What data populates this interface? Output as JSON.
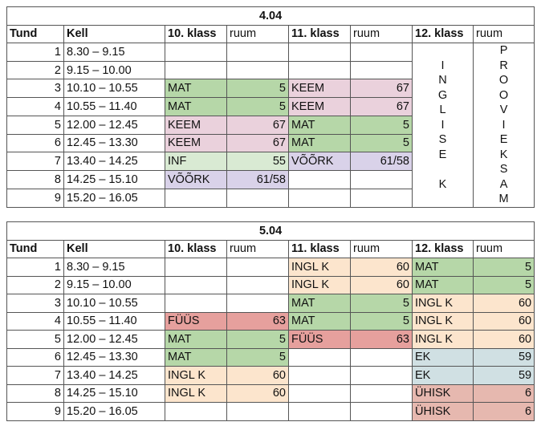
{
  "day1": {
    "title": "4.04",
    "headers": [
      "Tund",
      "Kell",
      "10. klass",
      "ruum",
      "11. klass",
      "ruum",
      "12. klass",
      "ruum"
    ],
    "rows": [
      {
        "n": "1",
        "time": "8.30 – 9.15",
        "s10": "",
        "r10": "",
        "s11": "",
        "r11": ""
      },
      {
        "n": "2",
        "time": "9.15 – 10.00",
        "s10": "",
        "r10": "",
        "s11": "",
        "r11": ""
      },
      {
        "n": "3",
        "time": "10.10 – 10.55",
        "s10": "MAT",
        "r10": "5",
        "s11": "KEEM",
        "r11": "67"
      },
      {
        "n": "4",
        "time": "10.55 – 11.40",
        "s10": "MAT",
        "r10": "5",
        "s11": "KEEM",
        "r11": "67"
      },
      {
        "n": "5",
        "time": "12.00 – 12.45",
        "s10": "KEEM",
        "r10": "67",
        "s11": "MAT",
        "r11": "5"
      },
      {
        "n": "6",
        "time": "12.45 – 13.30",
        "s10": "KEEM",
        "r10": "67",
        "s11": "MAT",
        "r11": "5"
      },
      {
        "n": "7",
        "time": "13.40 – 14.25",
        "s10": "INF",
        "r10": "55",
        "s11": "VÕÕRK",
        "r11": "61/58"
      },
      {
        "n": "8",
        "time": "14.25 – 15.10",
        "s10": "VÕÕRK",
        "r10": "61/58",
        "s11": "",
        "r11": ""
      },
      {
        "n": "9",
        "time": "15.20 – 16.05",
        "s10": "",
        "r10": "",
        "s11": "",
        "r11": ""
      }
    ],
    "vertical_subject": [
      "I",
      "N",
      "G",
      "L",
      "I",
      "S",
      "E",
      "",
      "K"
    ],
    "vertical_room": [
      "P",
      "R",
      "O",
      "O",
      "V",
      "I",
      "E",
      "K",
      "S",
      "A",
      "M"
    ]
  },
  "day2": {
    "title": "5.04",
    "headers": [
      "Tund",
      "Kell",
      "10. klass",
      "ruum",
      "11. klass",
      "ruum",
      "12. klass",
      "ruum"
    ],
    "rows": [
      {
        "n": "1",
        "time": "8.30 – 9.15",
        "s10": "",
        "r10": "",
        "s11": "INGL K",
        "r11": "60",
        "s12": "MAT",
        "r12": "5"
      },
      {
        "n": "2",
        "time": "9.15 – 10.00",
        "s10": "",
        "r10": "",
        "s11": "INGL K",
        "r11": "60",
        "s12": "MAT",
        "r12": "5"
      },
      {
        "n": "3",
        "time": "10.10 – 10.55",
        "s10": "",
        "r10": "",
        "s11": "MAT",
        "r11": "5",
        "s12": "INGL K",
        "r12": "60"
      },
      {
        "n": "4",
        "time": "10.55 – 11.40",
        "s10": "FÜÜS",
        "r10": "63",
        "s11": "MAT",
        "r11": "5",
        "s12": "INGL K",
        "r12": "60"
      },
      {
        "n": "5",
        "time": "12.00 – 12.45",
        "s10": "MAT",
        "r10": "5",
        "s11": "FÜÜS",
        "r11": "63",
        "s12": "INGL K",
        "r12": "60"
      },
      {
        "n": "6",
        "time": "12.45 – 13.30",
        "s10": "MAT",
        "r10": "5",
        "s11": "",
        "r11": "",
        "s12": "EK",
        "r12": "59"
      },
      {
        "n": "7",
        "time": "13.40 – 14.25",
        "s10": "INGL K",
        "r10": "60",
        "s11": "",
        "r11": "",
        "s12": "EK",
        "r12": "59"
      },
      {
        "n": "8",
        "time": "14.25 – 15.10",
        "s10": "INGL K",
        "r10": "60",
        "s11": "",
        "r11": "",
        "s12": "ÜHISK",
        "r12": "6"
      },
      {
        "n": "9",
        "time": "15.20 – 16.05",
        "s10": "",
        "r10": "",
        "s11": "",
        "r11": "",
        "s12": "ÜHISK",
        "r12": "6"
      }
    ]
  },
  "subject_colors": {
    "MAT": "#b6d7a8",
    "KEEM": "#ead1dc",
    "INF": "#d9ead3",
    "VÕÕRK": "#d9d2e9",
    "INGL K": "#fce5cd",
    "FÜÜS": "#e6a09d",
    "EK": "#d0e0e3",
    "ÜHISK": "#e6b8af"
  }
}
